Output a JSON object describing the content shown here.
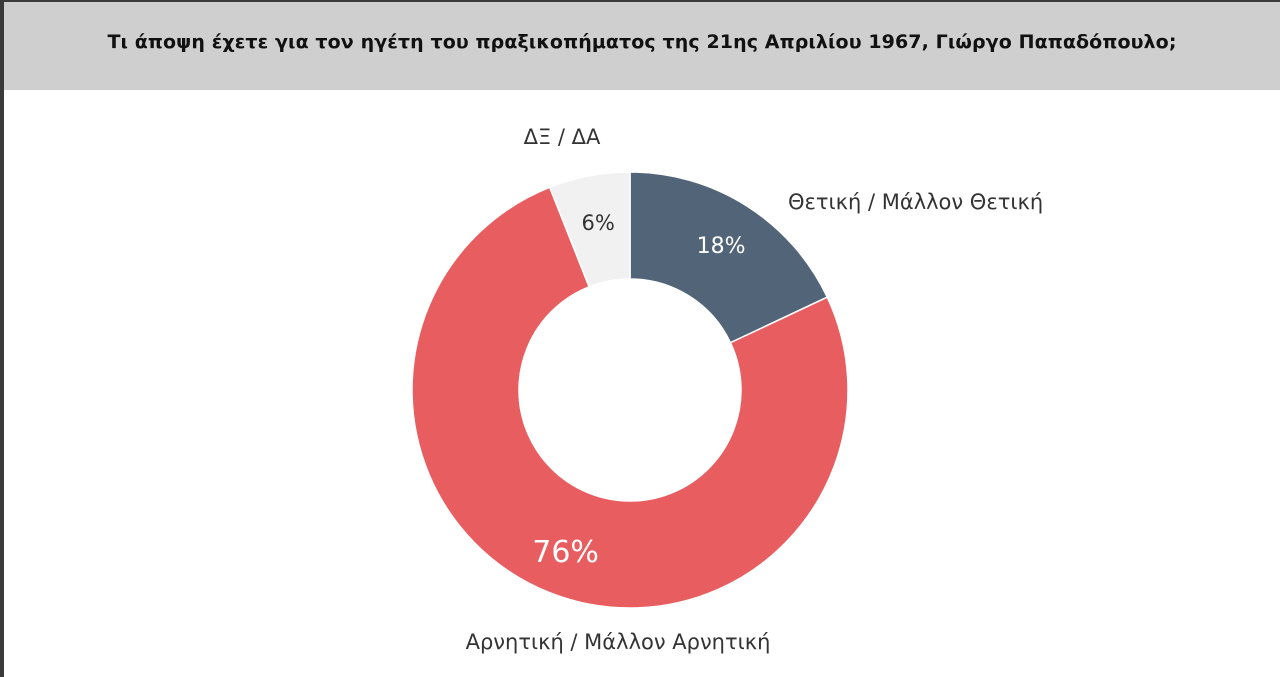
{
  "chart_data": {
    "type": "pie",
    "variant": "donut",
    "title": "Τι άποψη έχετε για τον ηγέτη του πραξικοπήματος της 21ης Απριλίου 1967, Γιώργο Παπαδόπουλο;",
    "categories": [
      "Θετική / Μάλλον Θετική",
      "Αρνητική / Μάλλον Αρνητική",
      "ΔΞ / ΔΑ"
    ],
    "values": [
      18,
      76,
      6
    ],
    "value_labels": [
      "18%",
      "76%",
      "6%"
    ],
    "colors": [
      "#526477",
      "#e85e60",
      "#f1f1f2"
    ],
    "label_colors": [
      "#ffffff",
      "#ffffff",
      "#333333"
    ],
    "legend": "none"
  }
}
